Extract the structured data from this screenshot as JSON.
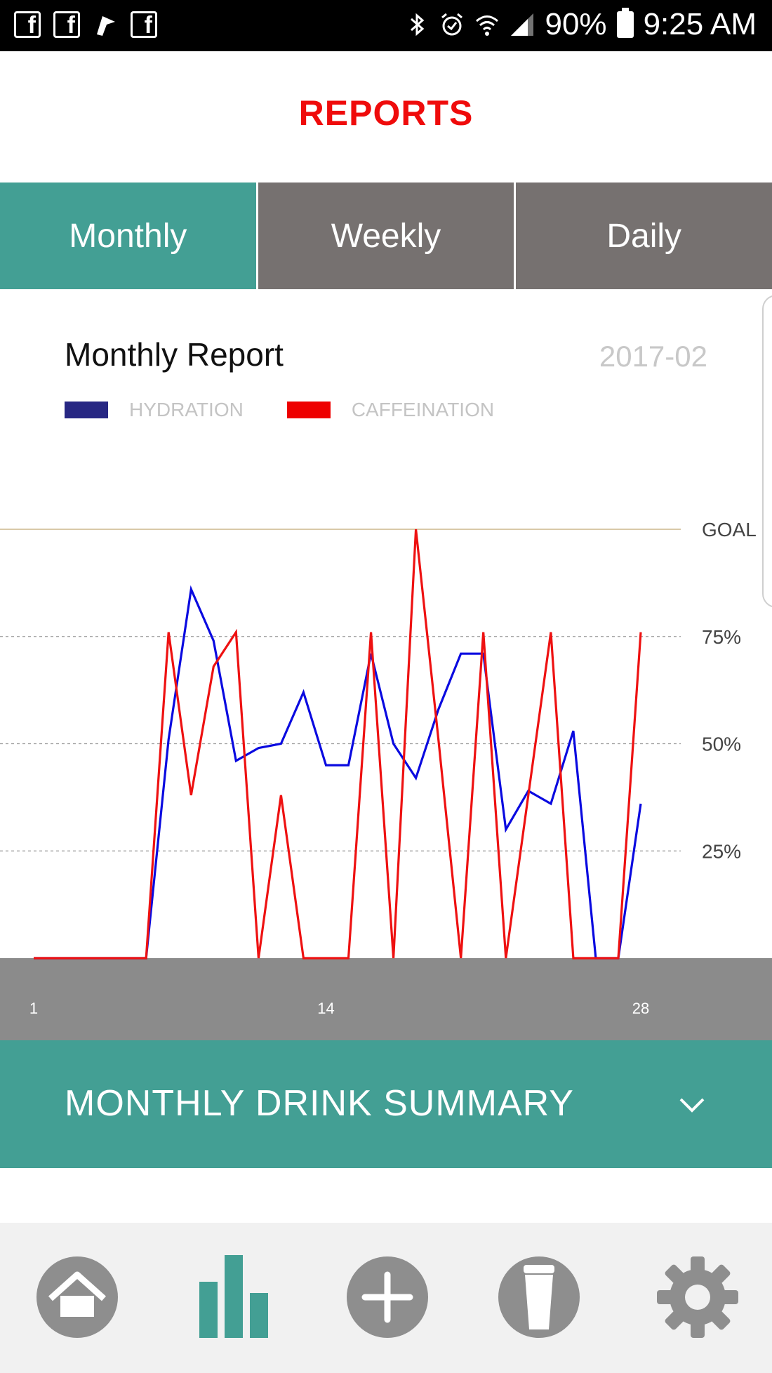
{
  "statusbar": {
    "left_icons": [
      "facebook-icon",
      "facebook-icon",
      "flag-icon",
      "facebook-icon"
    ],
    "right_icons": [
      "bluetooth-icon",
      "alarm-icon",
      "wifi-icon",
      "signal-icon"
    ],
    "battery": "90%",
    "time": "9:25 AM"
  },
  "header": {
    "title": "REPORTS"
  },
  "tabs": [
    {
      "label": "Monthly",
      "active": true
    },
    {
      "label": "Weekly",
      "active": false
    },
    {
      "label": "Daily",
      "active": false
    }
  ],
  "report": {
    "title": "Monthly Report",
    "date": "2017-02"
  },
  "colors": {
    "accent": "#439f94",
    "tab_inactive": "#767170",
    "title_red": "#ef0b0b",
    "hydration": "#0a0ae0",
    "caffeination": "#ee1111",
    "legend_hydration": "#272783",
    "legend_caffeination": "#ee0000",
    "goal_line": "#d9c9a8",
    "xaxis_band": "#8b8b8b"
  },
  "chart_data": {
    "type": "line",
    "x": [
      1,
      2,
      3,
      4,
      5,
      6,
      7,
      8,
      9,
      10,
      11,
      12,
      13,
      14,
      15,
      16,
      17,
      18,
      19,
      20,
      21,
      22,
      23,
      24,
      25,
      26,
      27,
      28
    ],
    "series": [
      {
        "name": "HYDRATION",
        "values": [
          0,
          0,
          0,
          0,
          0,
          0,
          51,
          86,
          74,
          46,
          49,
          50,
          62,
          45,
          45,
          71,
          50,
          42,
          58,
          71,
          71,
          30,
          39,
          36,
          53,
          0,
          0,
          36
        ]
      },
      {
        "name": "CAFFEINATION",
        "values": [
          0,
          0,
          0,
          0,
          0,
          0,
          76,
          38,
          68,
          76,
          0,
          38,
          0,
          0,
          0,
          76,
          0,
          100,
          51,
          0,
          76,
          0,
          38,
          76,
          0,
          0,
          0,
          76
        ]
      }
    ],
    "y_ticks": [
      {
        "value": 25,
        "label": "25%"
      },
      {
        "value": 50,
        "label": "50%"
      },
      {
        "value": 75,
        "label": "75%"
      },
      {
        "value": 100,
        "label": "GOAL"
      }
    ],
    "x_ticks": [
      {
        "value": 1,
        "label": "1"
      },
      {
        "value": 14,
        "label": "14"
      },
      {
        "value": 28,
        "label": "28"
      }
    ],
    "ylim": [
      0,
      100
    ],
    "xlim": [
      1,
      28
    ],
    "legend": "top-left",
    "grid": true
  },
  "summary": {
    "label": "MONTHLY DRINK SUMMARY"
  },
  "nav": {
    "items": [
      {
        "icon": "home-icon"
      },
      {
        "icon": "bar-chart-icon",
        "active": true
      },
      {
        "icon": "plus-icon"
      },
      {
        "icon": "cup-icon"
      },
      {
        "icon": "gear-icon"
      }
    ]
  }
}
